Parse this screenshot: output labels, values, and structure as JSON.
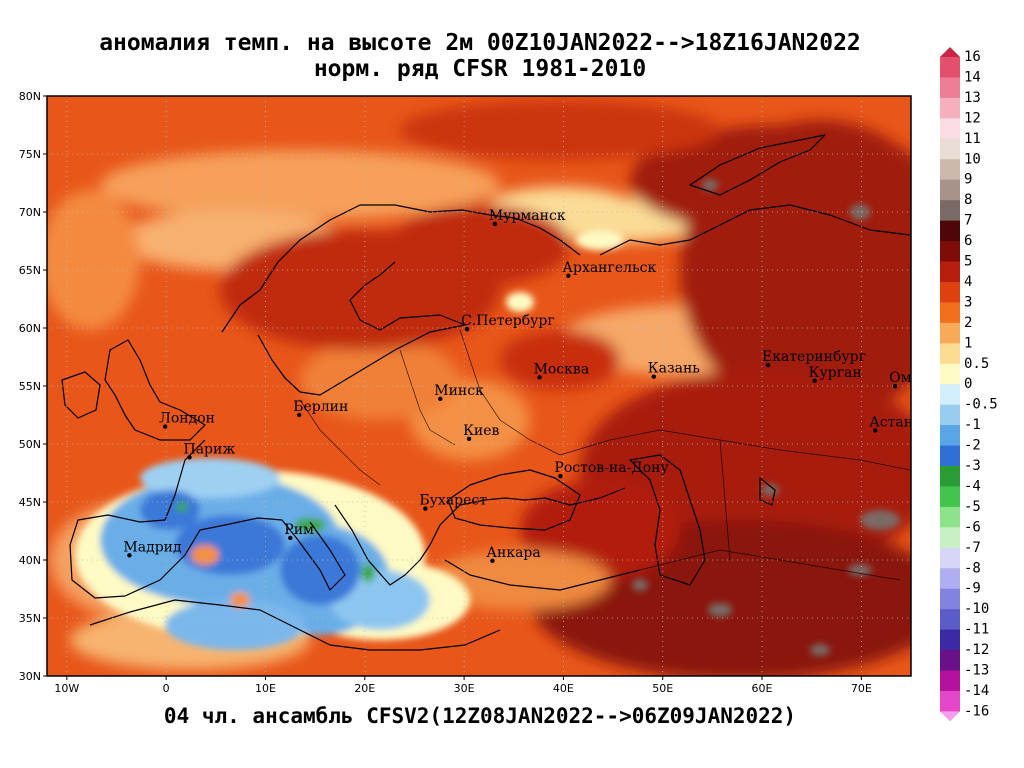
{
  "title": {
    "line1": "аномалия темп. на высоте 2м 00Z10JAN2022-->18Z16JAN2022",
    "line2": "норм. ряд CFSR 1981-2010"
  },
  "footer": "04 чл. ансамбль CFSV2(12Z08JAN2022-->06Z09JAN2022)",
  "map": {
    "lon_range": [
      -12,
      75
    ],
    "lat_range": [
      30,
      80
    ],
    "lat_ticks": [
      "30N",
      "35N",
      "40N",
      "45N",
      "50N",
      "55N",
      "60N",
      "65N",
      "70N",
      "75N",
      "80N"
    ],
    "lon_ticks": [
      "10W",
      "0",
      "10E",
      "20E",
      "30E",
      "40E",
      "50E",
      "60E",
      "70E"
    ],
    "cities": [
      {
        "name": "Мурманск",
        "lon": 33.1,
        "lat": 68.97
      },
      {
        "name": "Архангельск",
        "lon": 40.5,
        "lat": 64.5
      },
      {
        "name": "С.Петербург",
        "lon": 30.3,
        "lat": 59.9
      },
      {
        "name": "Москва",
        "lon": 37.6,
        "lat": 55.75
      },
      {
        "name": "Казань",
        "lon": 49.1,
        "lat": 55.8
      },
      {
        "name": "Екатеринбург",
        "lon": 60.6,
        "lat": 56.8
      },
      {
        "name": "Курган",
        "lon": 65.3,
        "lat": 55.45
      },
      {
        "name": "Омск",
        "lon": 73.4,
        "lat": 54.98
      },
      {
        "name": "Астана",
        "lon": 71.4,
        "lat": 51.17
      },
      {
        "name": "Минск",
        "lon": 27.6,
        "lat": 53.9
      },
      {
        "name": "Берлин",
        "lon": 13.4,
        "lat": 52.5
      },
      {
        "name": "Лондон",
        "lon": -0.1,
        "lat": 51.5
      },
      {
        "name": "Париж",
        "lon": 2.35,
        "lat": 48.85
      },
      {
        "name": "Киев",
        "lon": 30.5,
        "lat": 50.45
      },
      {
        "name": "Ростов-на-Дону",
        "lon": 39.7,
        "lat": 47.23
      },
      {
        "name": "Бухарест",
        "lon": 26.1,
        "lat": 44.43
      },
      {
        "name": "Рим",
        "lon": 12.5,
        "lat": 41.9
      },
      {
        "name": "Мадрид",
        "lon": -3.7,
        "lat": 40.4
      },
      {
        "name": "Анкара",
        "lon": 32.85,
        "lat": 39.93
      }
    ]
  },
  "colorbar": {
    "labels": [
      "16",
      "14",
      "13",
      "12",
      "11",
      "10",
      "9",
      "8",
      "7",
      "6",
      "5",
      "4",
      "3",
      "2",
      "1",
      "0.5",
      "0",
      "-0.5",
      "-1",
      "-2",
      "-3",
      "-4",
      "-5",
      "-6",
      "-7",
      "-8",
      "-9",
      "-10",
      "-11",
      "-12",
      "-13",
      "-14",
      "-16"
    ],
    "colors": [
      "#c82646",
      "#e2506e",
      "#ee7e96",
      "#f6b0bd",
      "#fadce2",
      "#eaddd5",
      "#ccb8ac",
      "#a8938a",
      "#7a6a66",
      "#4e0606",
      "#800c08",
      "#b81e0c",
      "#df400f",
      "#f2701d",
      "#f8a95a",
      "#fbda92",
      "#fefac4",
      "#d4eefb",
      "#99cdf0",
      "#5aa5e6",
      "#2f6fd6",
      "#2a9c35",
      "#43c44a",
      "#8de28c",
      "#c7f0c4",
      "#d6d6f6",
      "#aeaef0",
      "#8282e0",
      "#5c5cc8",
      "#3a2aa6",
      "#6a1088",
      "#b4129c",
      "#e448c8",
      "#f49ef0"
    ]
  }
}
